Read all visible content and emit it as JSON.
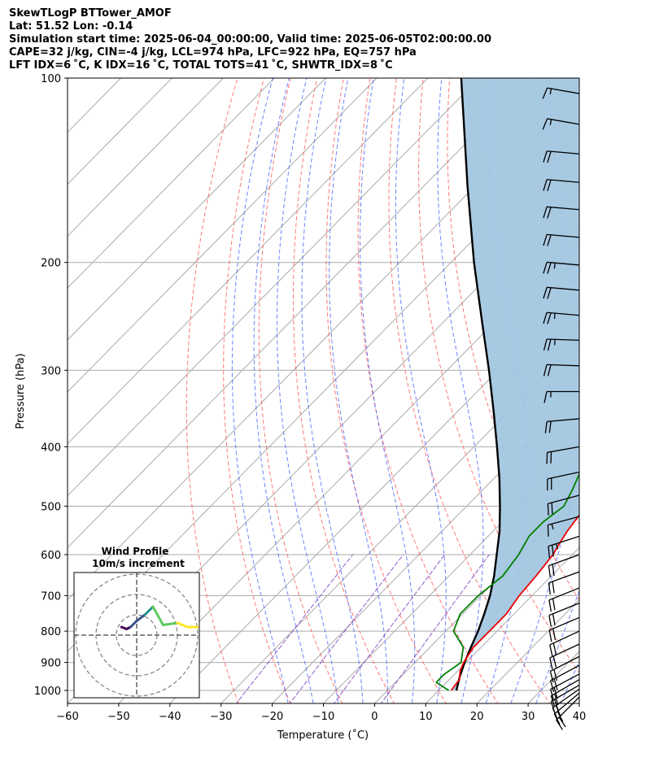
{
  "header": {
    "line1": "SkewTLogP BTTower_AMOF",
    "line2": "Lat: 51.52   Lon: -0.14",
    "line3": "Simulation start time: 2025-06-04_00:00:00, Valid time: 2025-06-05T02:00:00.00",
    "line4": "CAPE=32 j/kg, CIN=-4 j/kg, LCL=974 hPa, LFC=922 hPa, EQ=757 hPa",
    "line5": "LFT IDX=6 ˚C, K IDX=16 ˚C, TOTAL TOTS=41 ˚C, SHWTR_IDX=8 ˚C"
  },
  "chart_data": [
    {
      "type": "line",
      "subtype": "skew-T log-P",
      "xlabel": "Temperature (˚C)",
      "ylabel": "Pressure (hPa)",
      "xlim": [
        -60,
        40
      ],
      "ylim": [
        1050,
        100
      ],
      "yscale": "log",
      "xticks": [
        -60,
        -50,
        -40,
        -30,
        -20,
        -10,
        0,
        10,
        20,
        30,
        40
      ],
      "xtick_labels": [
        "−60",
        "−50",
        "−40",
        "−30",
        "−20",
        "−10",
        "0",
        "10",
        "20",
        "30",
        "40"
      ],
      "yticks": [
        100,
        200,
        300,
        400,
        500,
        600,
        700,
        800,
        900,
        1000
      ],
      "grid": true,
      "colors": {
        "temperature": "#ee0000",
        "dewpoint": "#008000",
        "parcel": "#000000",
        "cape_fill": "#a3c6e0",
        "isotherm": "#aaaaaa",
        "dry_adiabat": "#ff6060",
        "moist_adiabat": "#4a64ff",
        "mixing_ratio": "#8040c0"
      },
      "series": [
        {
          "role": "temperature",
          "p": [
            1000,
            980,
            960,
            930,
            900,
            850,
            800,
            750,
            700,
            650,
            600,
            580,
            550,
            520,
            500,
            460,
            420,
            380,
            350,
            310,
            290,
            275,
            260,
            240,
            215,
            200,
            188,
            175,
            160,
            145,
            130,
            115,
            100
          ],
          "t": [
            12.5,
            12.2,
            12.0,
            10.5,
            9.5,
            8.5,
            8.5,
            8.5,
            7.5,
            7.0,
            6.2,
            5.5,
            4.5,
            3.8,
            3.5,
            2.8,
            0.5,
            -2.0,
            -3.5,
            -5.8,
            -7.8,
            -8.5,
            -8.0,
            -4.0,
            0.5,
            3.5,
            5.0,
            6.0,
            6.8,
            7.5,
            8.5,
            10.0,
            12.0
          ]
        },
        {
          "role": "dewpoint",
          "p": [
            1000,
            970,
            940,
            900,
            850,
            800,
            750,
            700,
            650,
            600,
            560,
            530,
            500,
            470,
            430,
            390,
            350,
            320,
            290,
            270,
            260,
            250,
            230,
            200,
            180,
            150,
            100
          ],
          "t": [
            12.0,
            8.0,
            8.0,
            9.0,
            6.5,
            1.5,
            -0.5,
            -0.5,
            0.5,
            -0.5,
            -2.0,
            -2.0,
            -1.0,
            -2.5,
            -5.0,
            -8.0,
            -10.8,
            -13.0,
            -14.0,
            -15.0,
            -15.0,
            -17.5,
            -22.0,
            -31.5,
            -34.5,
            -36.0,
            -39.0
          ]
        },
        {
          "role": "parcel",
          "p": [
            1000,
            950,
            900,
            850,
            800,
            750,
            700,
            650,
            600,
            550,
            500,
            450,
            400,
            350,
            300,
            250,
            200,
            150,
            100
          ],
          "t": [
            13.5,
            11.5,
            9.7,
            8.0,
            6.3,
            4.2,
            1.8,
            -1.2,
            -4.8,
            -8.7,
            -13.5,
            -19.0,
            -25.5,
            -33.0,
            -41.8,
            -52.5,
            -65.5,
            -81.5,
            -103.5
          ]
        }
      ],
      "wind_barbs": {
        "p": [
          1025,
          1010,
          995,
          980,
          960,
          940,
          910,
          880,
          840,
          800,
          760,
          720,
          680,
          640,
          600,
          560,
          520,
          480,
          440,
          400,
          360,
          325,
          295,
          268,
          244,
          222,
          202,
          182,
          164,
          148,
          133,
          119,
          106
        ],
        "speed_kt": [
          20,
          20,
          20,
          20,
          20,
          20,
          20,
          20,
          20,
          20,
          20,
          20,
          20,
          20,
          20,
          25,
          15,
          20,
          20,
          20,
          20,
          15,
          20,
          25,
          25,
          20,
          25,
          20,
          20,
          20,
          20,
          15,
          15
        ],
        "direction_deg": [
          225,
          230,
          235,
          240,
          240,
          242,
          242,
          243,
          245,
          245,
          247,
          248,
          248,
          250,
          250,
          252,
          255,
          255,
          258,
          260,
          265,
          270,
          272,
          272,
          275,
          275,
          275,
          275,
          275,
          275,
          275,
          280,
          280
        ]
      },
      "inset": {
        "type": "hodograph",
        "title_line1": "Wind Profile",
        "title_line2": "10m/s increment",
        "rings": 3,
        "colormap": "viridis",
        "u": [
          -7.5,
          -5.0,
          -3.0,
          0.0,
          4.0,
          6.0,
          8.0,
          13.0,
          20.0,
          25.0,
          30.0
        ],
        "v": [
          4.0,
          3.0,
          4.0,
          7.0,
          10.0,
          12.0,
          14.0,
          5.0,
          6.0,
          4.0,
          4.0
        ]
      }
    }
  ]
}
